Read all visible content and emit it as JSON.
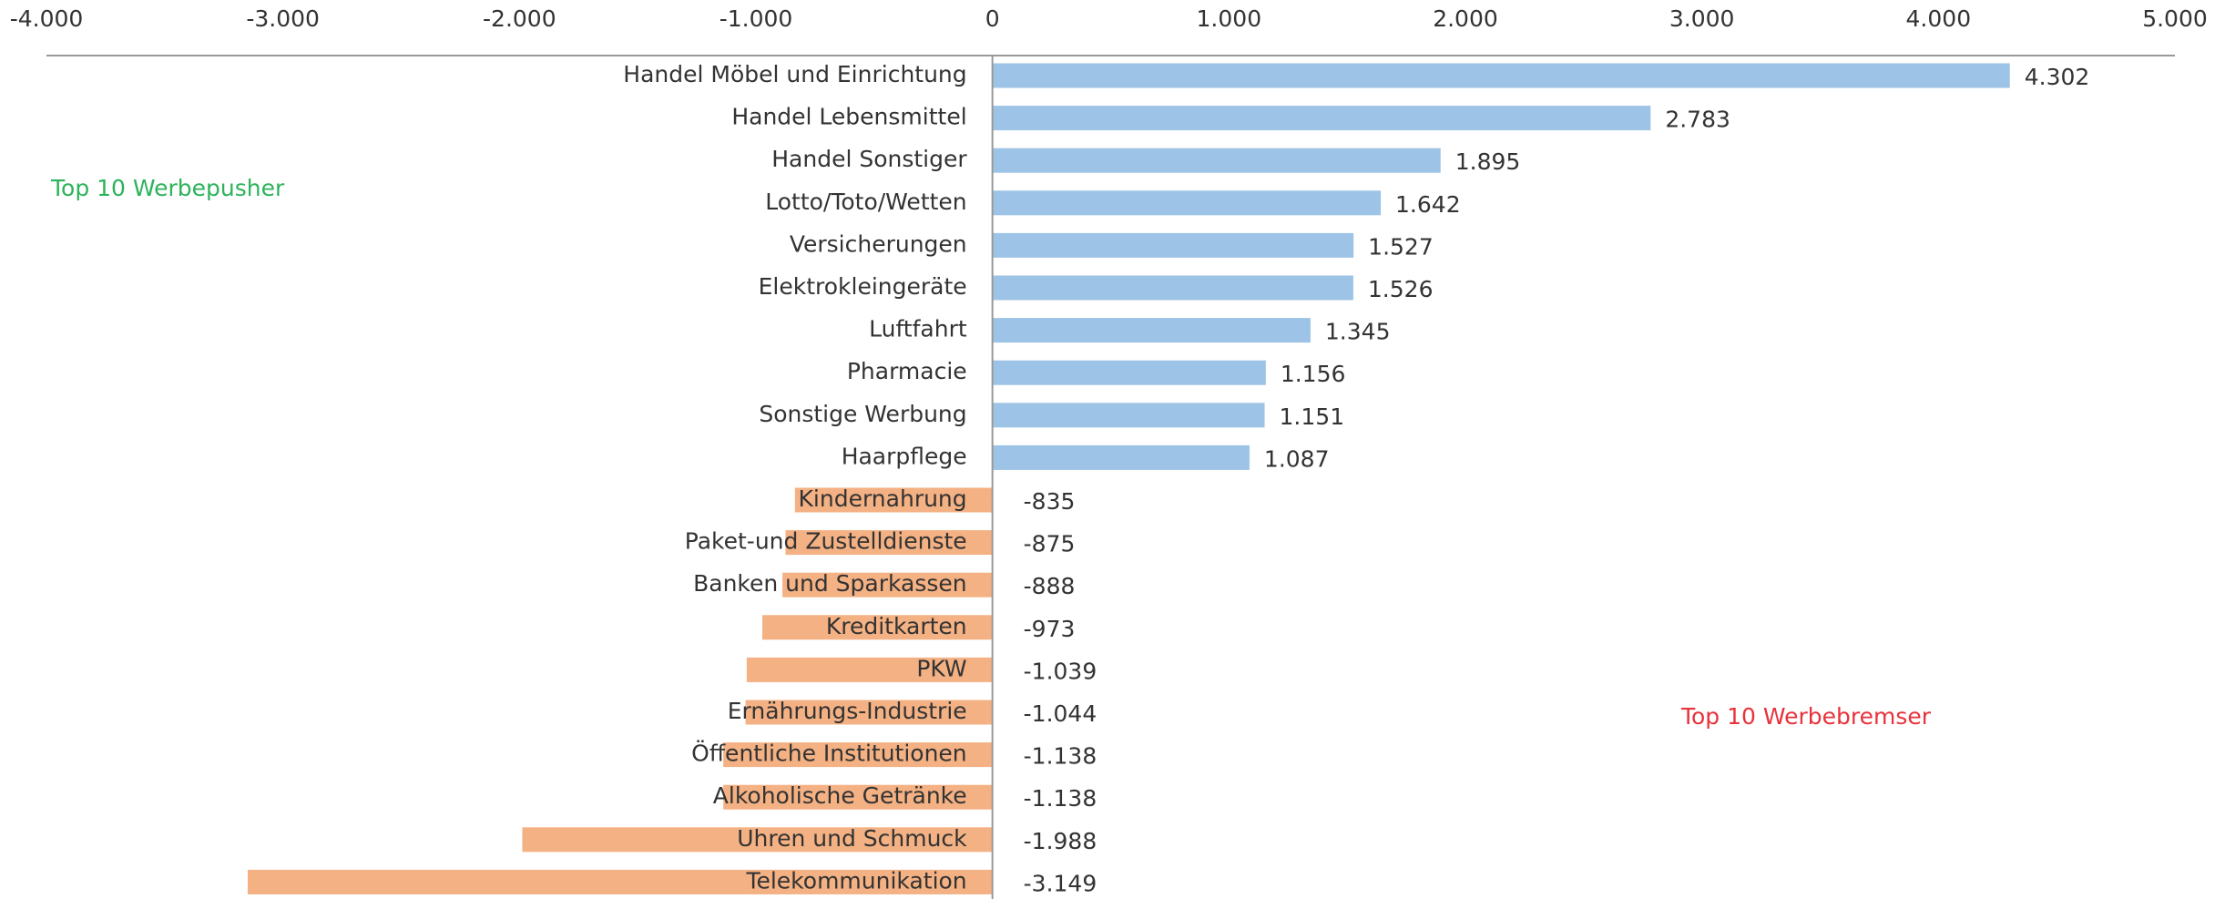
{
  "chart_data": {
    "type": "barh",
    "categories": [
      "Handel Möbel und Einrichtung",
      "Handel Lebensmittel",
      "Handel Sonstiger",
      "Lotto/Toto/Wetten",
      "Versicherungen",
      "Elektrokleingeräte",
      "Luftfahrt",
      "Pharmacie",
      "Sonstige Werbung",
      "Haarpflege",
      "Kindernahrung",
      "Paket-und Zustelldienste",
      "Banken und Sparkassen",
      "Kreditkarten",
      "PKW",
      "Ernährungs-Industrie",
      "Öffentliche Institutionen",
      "Alkoholische Getränke",
      "Uhren und Schmuck",
      "Telekommunikation"
    ],
    "values": [
      4302,
      2783,
      1895,
      1642,
      1527,
      1526,
      1345,
      1156,
      1151,
      1087,
      -835,
      -875,
      -888,
      -973,
      -1039,
      -1044,
      -1138,
      -1138,
      -1988,
      -3149
    ],
    "value_labels": [
      "4.302",
      "2.783",
      "1.895",
      "1.642",
      "1.527",
      "1.526",
      "1.345",
      "1.156",
      "1.151",
      "1.087",
      "-835",
      "-875",
      "-888",
      "-973",
      "-1.039",
      "-1.044",
      "-1.138",
      "-1.138",
      "-1.988",
      "-3.149"
    ],
    "positive_color": "#9dc3e6",
    "negative_color": "#f4b183",
    "xlim": [
      -4000,
      5000
    ],
    "xticks": [
      {
        "value": -4000,
        "label": "-4.000"
      },
      {
        "value": -3000,
        "label": "-3.000"
      },
      {
        "value": -2000,
        "label": "-2.000"
      },
      {
        "value": -1000,
        "label": "-1.000"
      },
      0,
      {
        "value": 1000,
        "label": "1.000"
      },
      {
        "value": 2000,
        "label": "2.000"
      },
      {
        "value": 3000,
        "label": "3.000"
      },
      {
        "value": 4000,
        "label": "4.000"
      },
      {
        "value": 5000,
        "label": "5.000"
      }
    ],
    "annotations": [
      "Top 10 Werbepusher",
      "Top 10 Werbebremser"
    ]
  }
}
